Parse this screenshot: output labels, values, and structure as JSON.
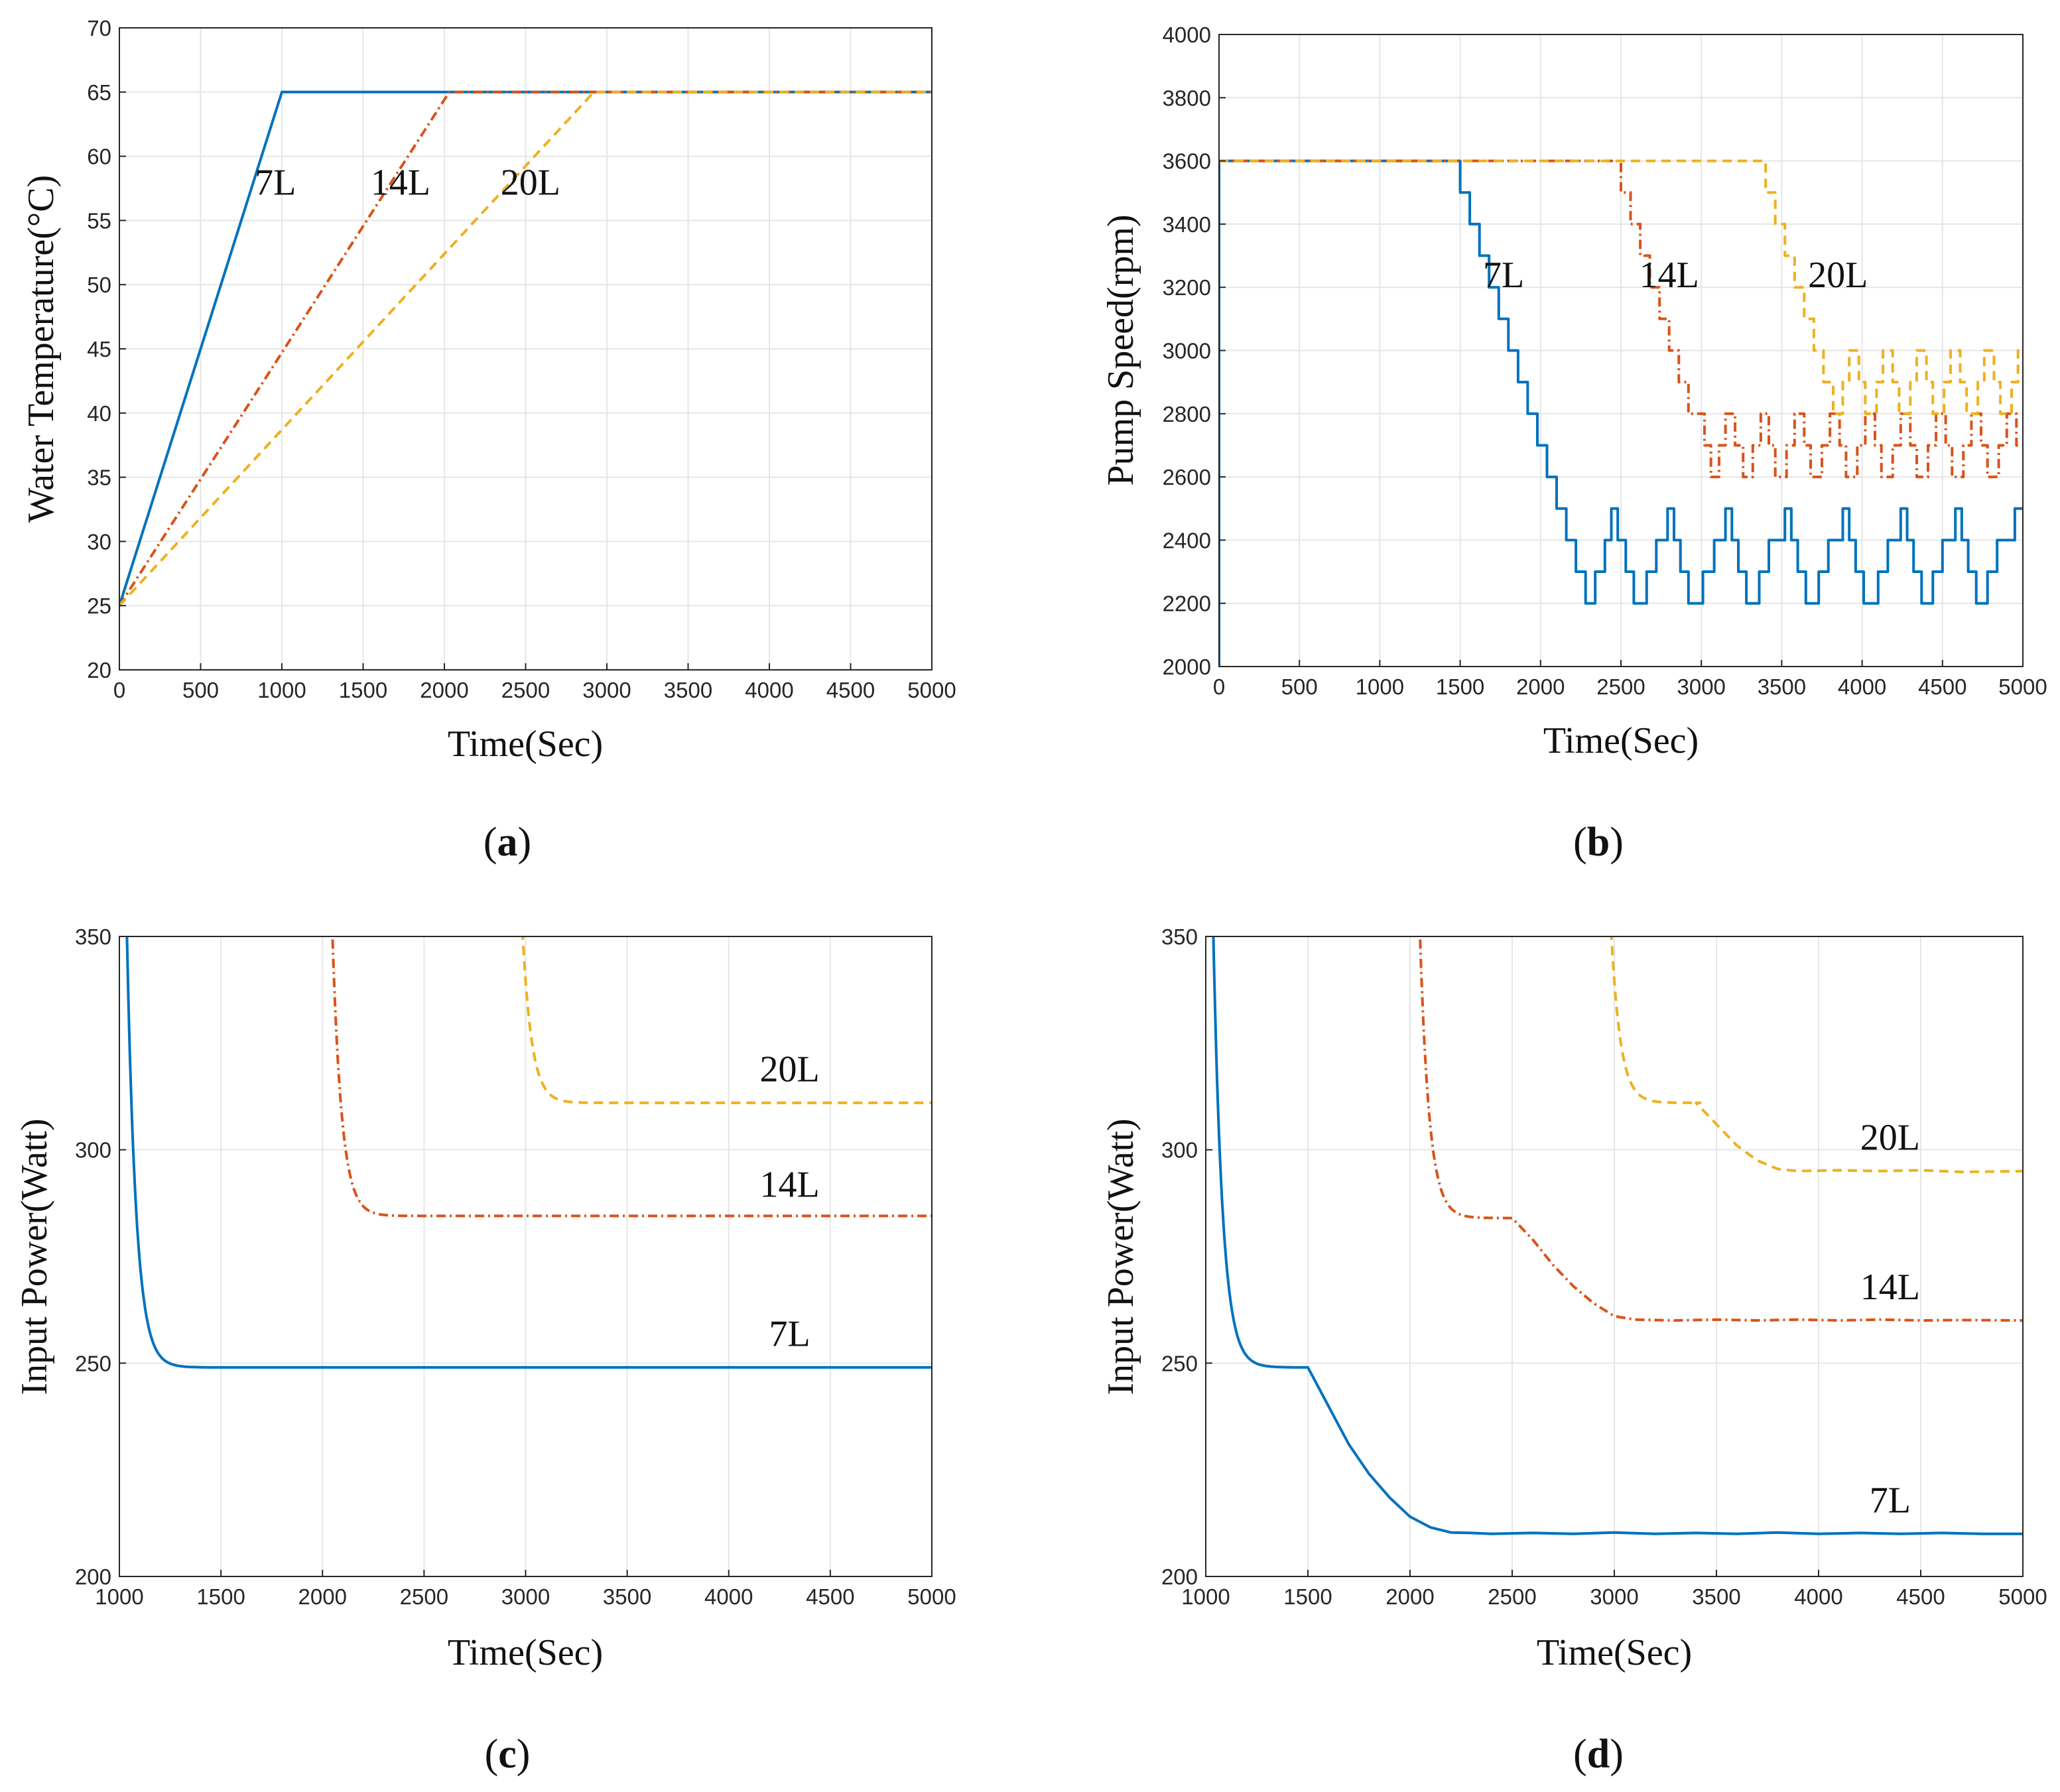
{
  "figure": {
    "colors": {
      "7L": "#0072BD",
      "14L": "#D95319",
      "20L": "#EDB120"
    },
    "styles": {
      "7L": "solid",
      "14L": "dashdot",
      "20L": "dashed"
    }
  },
  "chart_data": [
    {
      "id": "a",
      "type": "line",
      "caption_letter": "a",
      "xlabel": "Time(Sec)",
      "ylabel": "Water Temperature(°C)",
      "xlim": [
        0,
        5000
      ],
      "ylim": [
        20,
        70
      ],
      "xticks": [
        0,
        500,
        1000,
        1500,
        2000,
        2500,
        3000,
        3500,
        4000,
        4500,
        5000
      ],
      "yticks": [
        20,
        25,
        30,
        35,
        40,
        45,
        50,
        55,
        60,
        65,
        70
      ],
      "grid": true,
      "series": [
        {
          "name": "7L",
          "label": "7L",
          "label_at": [
            960,
            57
          ],
          "points": [
            [
              0,
              25
            ],
            [
              1000,
              65
            ],
            [
              1020,
              65
            ],
            [
              5000,
              65
            ]
          ]
        },
        {
          "name": "14L",
          "label": "14L",
          "label_at": [
            1730,
            57
          ],
          "points": [
            [
              0,
              25
            ],
            [
              2030,
              65
            ],
            [
              5000,
              65
            ]
          ]
        },
        {
          "name": "20L",
          "label": "20L",
          "label_at": [
            2530,
            57
          ],
          "points": [
            [
              0,
              25
            ],
            [
              2920,
              65
            ],
            [
              5000,
              65
            ]
          ]
        }
      ]
    },
    {
      "id": "b",
      "type": "line",
      "caption_letter": "b",
      "xlabel": "Time(Sec)",
      "ylabel": "Pump Speed(rpm)",
      "xlim": [
        0,
        5000
      ],
      "ylim": [
        2000,
        4000
      ],
      "xticks": [
        0,
        500,
        1000,
        1500,
        2000,
        2500,
        3000,
        3500,
        4000,
        4500,
        5000
      ],
      "yticks": [
        2000,
        2200,
        2400,
        2600,
        2800,
        3000,
        3200,
        3400,
        3600,
        3800,
        4000
      ],
      "grid": true,
      "series": [
        {
          "name": "7L",
          "label": "7L",
          "label_at": [
            1770,
            3200
          ],
          "step_start": [
            0,
            2000
          ],
          "steps": [
            [
              0,
              3600
            ],
            [
              1500,
              3500
            ],
            [
              1560,
              3400
            ],
            [
              1620,
              3300
            ],
            [
              1680,
              3200
            ],
            [
              1740,
              3100
            ],
            [
              1800,
              3000
            ],
            [
              1860,
              2900
            ],
            [
              1920,
              2800
            ],
            [
              1980,
              2700
            ],
            [
              2040,
              2600
            ],
            [
              2100,
              2500
            ],
            [
              2160,
              2400
            ],
            [
              2220,
              2300
            ],
            [
              2280,
              2200
            ],
            [
              2340,
              2300
            ],
            [
              2400,
              2400
            ],
            [
              2440,
              2500
            ],
            [
              2480,
              2400
            ],
            [
              2530,
              2300
            ],
            [
              2580,
              2200
            ],
            [
              2660,
              2300
            ],
            [
              2720,
              2400
            ],
            [
              2790,
              2500
            ],
            [
              2830,
              2400
            ],
            [
              2870,
              2300
            ],
            [
              2920,
              2200
            ],
            [
              3010,
              2300
            ],
            [
              3080,
              2400
            ],
            [
              3150,
              2500
            ],
            [
              3190,
              2400
            ],
            [
              3230,
              2300
            ],
            [
              3280,
              2200
            ],
            [
              3360,
              2300
            ],
            [
              3420,
              2400
            ],
            [
              3520,
              2500
            ],
            [
              3560,
              2400
            ],
            [
              3600,
              2300
            ],
            [
              3650,
              2200
            ],
            [
              3730,
              2300
            ],
            [
              3790,
              2400
            ],
            [
              3880,
              2500
            ],
            [
              3920,
              2400
            ],
            [
              3960,
              2300
            ],
            [
              4010,
              2200
            ],
            [
              4100,
              2300
            ],
            [
              4160,
              2400
            ],
            [
              4240,
              2500
            ],
            [
              4280,
              2400
            ],
            [
              4320,
              2300
            ],
            [
              4370,
              2200
            ],
            [
              4440,
              2300
            ],
            [
              4500,
              2400
            ],
            [
              4580,
              2500
            ],
            [
              4620,
              2400
            ],
            [
              4660,
              2300
            ],
            [
              4710,
              2200
            ],
            [
              4780,
              2300
            ],
            [
              4840,
              2400
            ],
            [
              4950,
              2500
            ]
          ],
          "x_end": 5000
        },
        {
          "name": "14L",
          "label": "14L",
          "label_at": [
            2800,
            3200
          ],
          "steps": [
            [
              0,
              3600
            ],
            [
              2500,
              3500
            ],
            [
              2560,
              3400
            ],
            [
              2620,
              3300
            ],
            [
              2680,
              3200
            ],
            [
              2740,
              3100
            ],
            [
              2800,
              3000
            ],
            [
              2860,
              2900
            ],
            [
              2920,
              2800
            ],
            [
              3020,
              2700
            ],
            [
              3060,
              2600
            ],
            [
              3110,
              2700
            ],
            [
              3150,
              2800
            ],
            [
              3210,
              2700
            ],
            [
              3260,
              2600
            ],
            [
              3320,
              2700
            ],
            [
              3370,
              2800
            ],
            [
              3420,
              2700
            ],
            [
              3460,
              2600
            ],
            [
              3530,
              2700
            ],
            [
              3580,
              2800
            ],
            [
              3640,
              2700
            ],
            [
              3680,
              2600
            ],
            [
              3750,
              2700
            ],
            [
              3800,
              2800
            ],
            [
              3860,
              2700
            ],
            [
              3900,
              2600
            ],
            [
              3970,
              2700
            ],
            [
              4020,
              2800
            ],
            [
              4080,
              2700
            ],
            [
              4120,
              2600
            ],
            [
              4190,
              2700
            ],
            [
              4240,
              2800
            ],
            [
              4300,
              2700
            ],
            [
              4340,
              2600
            ],
            [
              4410,
              2700
            ],
            [
              4460,
              2800
            ],
            [
              4520,
              2700
            ],
            [
              4560,
              2600
            ],
            [
              4630,
              2700
            ],
            [
              4680,
              2800
            ],
            [
              4740,
              2700
            ],
            [
              4780,
              2600
            ],
            [
              4850,
              2700
            ],
            [
              4900,
              2800
            ],
            [
              4960,
              2700
            ]
          ],
          "x_end": 5000
        },
        {
          "name": "20L",
          "label": "20L",
          "label_at": [
            3850,
            3200
          ],
          "steps": [
            [
              0,
              3600
            ],
            [
              3400,
              3500
            ],
            [
              3460,
              3400
            ],
            [
              3520,
              3300
            ],
            [
              3580,
              3200
            ],
            [
              3640,
              3100
            ],
            [
              3700,
              3000
            ],
            [
              3760,
              2900
            ],
            [
              3820,
              2800
            ],
            [
              3880,
              2900
            ],
            [
              3920,
              3000
            ],
            [
              3980,
              2900
            ],
            [
              4020,
              2800
            ],
            [
              4090,
              2900
            ],
            [
              4130,
              3000
            ],
            [
              4190,
              2900
            ],
            [
              4230,
              2800
            ],
            [
              4300,
              2900
            ],
            [
              4340,
              3000
            ],
            [
              4400,
              2900
            ],
            [
              4440,
              2800
            ],
            [
              4510,
              2900
            ],
            [
              4550,
              3000
            ],
            [
              4610,
              2900
            ],
            [
              4650,
              2800
            ],
            [
              4720,
              2900
            ],
            [
              4760,
              3000
            ],
            [
              4820,
              2900
            ],
            [
              4860,
              2800
            ],
            [
              4930,
              2900
            ],
            [
              4970,
              3000
            ]
          ],
          "x_end": 5000
        }
      ]
    },
    {
      "id": "c",
      "type": "line",
      "caption_letter": "c",
      "xlabel": "Time(Sec)",
      "ylabel": "Input Power(Watt)",
      "xlim": [
        1000,
        5000
      ],
      "ylim": [
        200,
        350
      ],
      "xticks": [
        1000,
        1500,
        2000,
        2500,
        3000,
        3500,
        4000,
        4500,
        5000
      ],
      "yticks": [
        200,
        250,
        300,
        350
      ],
      "grid": true,
      "series": [
        {
          "name": "7L",
          "label": "7L",
          "label_at": [
            4300,
            254
          ],
          "decay": {
            "t0": 1000,
            "start": 480,
            "end": 249,
            "tau": 45
          },
          "points": [
            [
              5000,
              249
            ]
          ]
        },
        {
          "name": "14L",
          "label": "14L",
          "label_at": [
            4300,
            289
          ],
          "decay": {
            "t0": 2000,
            "start": 480,
            "end": 284.5,
            "tau": 45
          },
          "points": [
            [
              5000,
              284.5
            ]
          ]
        },
        {
          "name": "20L",
          "label": "20L",
          "label_at": [
            4300,
            316
          ],
          "decay": {
            "t0": 2920,
            "start": 480,
            "end": 311,
            "tau": 45
          },
          "points": [
            [
              5000,
              311
            ]
          ]
        }
      ]
    },
    {
      "id": "d",
      "type": "line",
      "caption_letter": "d",
      "xlabel": "Time(Sec)",
      "ylabel": "Input Power(Watt)",
      "xlim": [
        1000,
        5000
      ],
      "ylim": [
        200,
        350
      ],
      "xticks": [
        1000,
        1500,
        2000,
        2500,
        3000,
        3500,
        4000,
        4500,
        5000
      ],
      "yticks": [
        200,
        250,
        300,
        350
      ],
      "grid": true,
      "series": [
        {
          "name": "7L",
          "label": "7L",
          "label_at": [
            4350,
            215
          ],
          "decay": {
            "t0": 1000,
            "start": 480,
            "end": 249,
            "tau": 45
          },
          "points": [
            [
              1500,
              249
            ],
            [
              1600,
              240
            ],
            [
              1700,
              231
            ],
            [
              1800,
              224
            ],
            [
              1900,
              218.5
            ],
            [
              2000,
              214
            ],
            [
              2100,
              211.5
            ],
            [
              2200,
              210.3
            ],
            [
              2300,
              210.2
            ],
            [
              2400,
              210
            ],
            [
              2600,
              210.2
            ],
            [
              2800,
              210
            ],
            [
              3000,
              210.3
            ],
            [
              3200,
              210
            ],
            [
              3400,
              210.2
            ],
            [
              3600,
              210
            ],
            [
              3800,
              210.3
            ],
            [
              4000,
              210
            ],
            [
              4200,
              210.2
            ],
            [
              4400,
              210
            ],
            [
              4600,
              210.2
            ],
            [
              4800,
              210
            ],
            [
              5000,
              210
            ]
          ]
        },
        {
          "name": "14L",
          "label": "14L",
          "label_at": [
            4350,
            265
          ],
          "decay": {
            "t0": 2000,
            "start": 480,
            "end": 284,
            "tau": 45
          },
          "points": [
            [
              2500,
              284
            ],
            [
              2600,
              279
            ],
            [
              2700,
              273
            ],
            [
              2800,
              268
            ],
            [
              2900,
              264
            ],
            [
              3000,
              261
            ],
            [
              3100,
              260.2
            ],
            [
              3300,
              260
            ],
            [
              3500,
              260.2
            ],
            [
              3700,
              260
            ],
            [
              3900,
              260.2
            ],
            [
              4100,
              260
            ],
            [
              4300,
              260.2
            ],
            [
              4500,
              260
            ],
            [
              4700,
              260.1
            ],
            [
              5000,
              260
            ]
          ]
        },
        {
          "name": "20L",
          "label": "20L",
          "label_at": [
            4350,
            300
          ],
          "decay": {
            "t0": 2920,
            "start": 480,
            "end": 311,
            "tau": 45
          },
          "points": [
            [
              3400,
              311
            ],
            [
              3500,
              306
            ],
            [
              3600,
              301
            ],
            [
              3700,
              297.5
            ],
            [
              3800,
              295.5
            ],
            [
              3900,
              295
            ],
            [
              4100,
              295.2
            ],
            [
              4300,
              295
            ],
            [
              4500,
              295.2
            ],
            [
              4700,
              294.8
            ],
            [
              5000,
              295
            ]
          ]
        }
      ]
    }
  ]
}
